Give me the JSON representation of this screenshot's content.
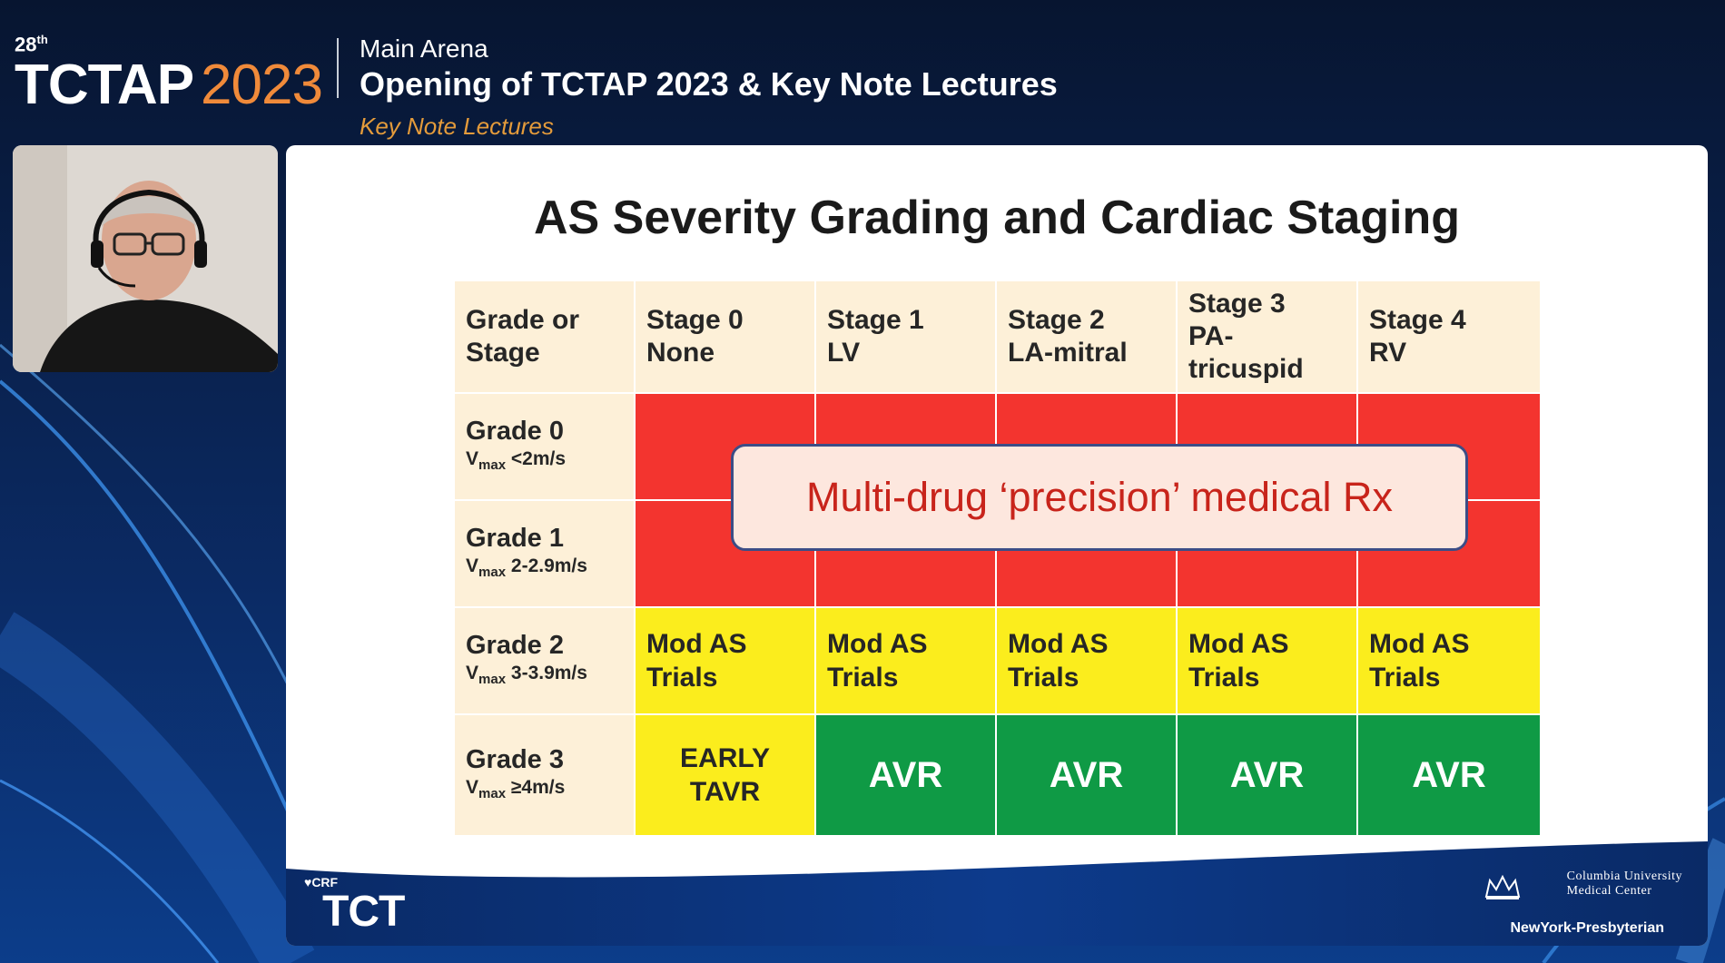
{
  "header": {
    "ordinal": "28",
    "ordinal_suffix": "th",
    "event_name": "TCTAP",
    "event_year": "2023",
    "venue": "Main Arena",
    "session_title": "Opening of TCTAP 2023 & Key Note Lectures",
    "session_subtitle": "Key Note Lectures"
  },
  "slide": {
    "title": "AS Severity Grading and Cardiac Staging",
    "header_cells": [
      [
        "Grade or",
        "Stage"
      ],
      [
        "Stage 0",
        "None"
      ],
      [
        "Stage 1",
        "LV"
      ],
      [
        "Stage 2",
        "LA-mitral"
      ],
      [
        "Stage 3",
        "PA-",
        "tricuspid"
      ],
      [
        "Stage 4",
        "RV"
      ]
    ],
    "rows": [
      {
        "grade": "Grade 0",
        "vmax_sub": "max",
        "vmax_value": "<2m/s"
      },
      {
        "grade": "Grade 1",
        "vmax_sub": "max",
        "vmax_value": "2-2.9m/s"
      },
      {
        "grade": "Grade 2",
        "vmax_sub": "max",
        "vmax_value": "3-3.9m/s"
      },
      {
        "grade": "Grade 3",
        "vmax_sub": "max",
        "vmax_value": "≥4m/s"
      }
    ],
    "overlay_text": "Multi-drug ‘precision’ medical Rx",
    "mod_as": [
      "Mod AS",
      "Trials"
    ],
    "early_tavr": [
      "EARLY",
      "TAVR"
    ],
    "avr": "AVR",
    "footer": {
      "crf": "CRF",
      "tct": "TCT",
      "columbia_line1": "Columbia University",
      "columbia_line2": "Medical Center",
      "nyp": "NewYork-Presbyterian"
    }
  },
  "colors": {
    "background": "#061633",
    "accent_orange": "#f08a3a",
    "cell_red": "#f3342f",
    "cell_yellow": "#fbed1d",
    "cell_green": "#0f9a45",
    "header_cream": "#fdf0d8"
  }
}
